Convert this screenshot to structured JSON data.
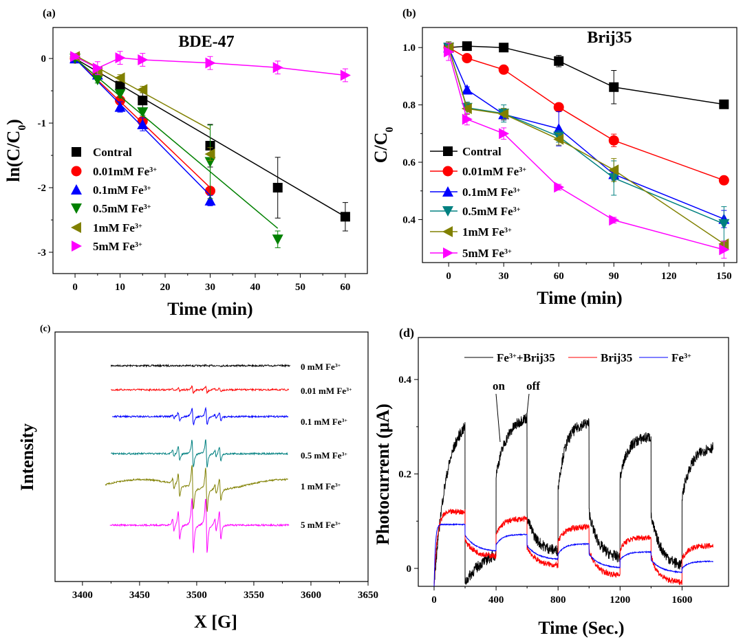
{
  "chart_data": [
    {
      "panel": "(a)",
      "type": "scatter",
      "title": "BDE-47",
      "xlabel": "Time (min)",
      "ylabel": {
        "text": "ln(C/C",
        "sub": "0",
        "tail": ")"
      },
      "xlim": [
        -4.9,
        64.9
      ],
      "ylim": [
        -3.33,
        0.48
      ],
      "xticks": [
        0,
        10,
        20,
        30,
        40,
        50,
        60
      ],
      "yticks": [
        0,
        -1,
        -2,
        -3
      ],
      "legend_position": "bottom-left",
      "series": [
        {
          "name": {
            "text": "Contral",
            "sup": ""
          },
          "color": "#000000",
          "marker": "square",
          "x": [
            0,
            10,
            15,
            30,
            45,
            60
          ],
          "y": [
            0,
            -0.42,
            -0.65,
            -1.35,
            -2.0,
            -2.45
          ],
          "err": [
            0.05,
            0.1,
            0.12,
            0.33,
            0.47,
            0.22
          ],
          "fit": [
            [
              0,
              0
            ],
            [
              60,
              -2.45
            ]
          ]
        },
        {
          "name": {
            "text": "0.01mM Fe",
            "sup": "3+"
          },
          "color": "#ff0000",
          "marker": "circle",
          "x": [
            0,
            5,
            10,
            15,
            30
          ],
          "y": [
            0,
            -0.25,
            -0.65,
            -0.97,
            -2.05
          ],
          "err": [
            0.03,
            0.06,
            0.05,
            0.05,
            0.05
          ],
          "fit": [
            [
              0,
              0
            ],
            [
              30,
              -2.0
            ]
          ]
        },
        {
          "name": {
            "text": "0.1mM Fe",
            "sup": "3+"
          },
          "color": "#0000ff",
          "marker": "triangle-up",
          "x": [
            0,
            5,
            10,
            15,
            30
          ],
          "y": [
            0,
            -0.25,
            -0.75,
            -1.02,
            -2.2
          ],
          "err": [
            0.03,
            0.05,
            0.08,
            0.1,
            0.08
          ],
          "fit": [
            [
              0,
              0
            ],
            [
              30,
              -2.12
            ]
          ]
        },
        {
          "name": {
            "text": "0.5mM Fe",
            "sup": "3+"
          },
          "color": "#008000",
          "marker": "triangle-down",
          "x": [
            0,
            5,
            10,
            15,
            30,
            45
          ],
          "y": [
            0,
            -0.33,
            -0.55,
            -0.83,
            -1.6,
            -2.8
          ],
          "err": [
            0.03,
            0.05,
            0.05,
            0.05,
            0.57,
            0.13
          ],
          "fit": [
            [
              0,
              0
            ],
            [
              45,
              -2.63
            ]
          ]
        },
        {
          "name": {
            "text": "1mM Fe",
            "sup": "3+"
          },
          "color": "#808000",
          "marker": "triangle-left",
          "x": [
            0,
            5,
            10,
            15,
            30
          ],
          "y": [
            0.03,
            -0.2,
            -0.3,
            -0.48,
            -1.48
          ],
          "err": [
            0.04,
            0.05,
            0.05,
            0.05,
            0.1
          ],
          "fit": [
            [
              0,
              0.05
            ],
            [
              30,
              -1.1
            ]
          ]
        },
        {
          "name": {
            "text": "5mM Fe",
            "sup": "3+"
          },
          "color": "#ff00ff",
          "marker": "triangle-right",
          "x": [
            0,
            5,
            10,
            15,
            30,
            45,
            60
          ],
          "y": [
            0.03,
            -0.15,
            0.01,
            -0.02,
            -0.07,
            -0.14,
            -0.26
          ],
          "err": [
            0.04,
            0.1,
            0.1,
            0.1,
            0.1,
            0.1,
            0.1
          ],
          "fit": null
        }
      ]
    },
    {
      "panel": "(b)",
      "type": "line",
      "title": "Brij35",
      "xlabel": "Time (min)",
      "ylabel": {
        "text": "C/C",
        "sub": "0",
        "tail": ""
      },
      "xlim": [
        -14.3,
        157
      ],
      "ylim": [
        0.25,
        1.07
      ],
      "xticks": [
        0,
        30,
        60,
        90,
        120,
        150
      ],
      "yticks": [
        0.4,
        0.6,
        0.8,
        1.0
      ],
      "yticklabels": [
        "0.4",
        "0.6",
        "0.8",
        "1.0"
      ],
      "legend_position": "bottom-left",
      "series": [
        {
          "name": {
            "text": "Contral",
            "sup": ""
          },
          "color": "#000000",
          "marker": "square",
          "x": [
            0,
            10,
            30,
            60,
            90,
            150
          ],
          "y": [
            1.0,
            1.005,
            1.0,
            0.953,
            0.862,
            0.802
          ],
          "err": [
            0.01,
            0.005,
            0.005,
            0.02,
            0.058,
            0.01
          ]
        },
        {
          "name": {
            "text": "0.01mM Fe",
            "sup": "3+"
          },
          "color": "#ff0000",
          "marker": "circle",
          "x": [
            0,
            10,
            30,
            60,
            90,
            150
          ],
          "y": [
            1.0,
            0.963,
            0.923,
            0.792,
            0.676,
            0.537
          ],
          "err": [
            0.01,
            0.005,
            0.005,
            0.01,
            0.022,
            0.01
          ]
        },
        {
          "name": {
            "text": "0.1mM Fe",
            "sup": "3+"
          },
          "color": "#0000ff",
          "marker": "triangle-up",
          "x": [
            0,
            10,
            30,
            60,
            90,
            150
          ],
          "y": [
            1.0,
            0.853,
            0.767,
            0.717,
            0.558,
            0.402
          ],
          "err": [
            0.02,
            0.01,
            0.02,
            0.06,
            0.02,
            0.03
          ]
        },
        {
          "name": {
            "text": "0.5mM Fe",
            "sup": "3+"
          },
          "color": "#008080",
          "marker": "triangle-down",
          "x": [
            0,
            10,
            30,
            60,
            90,
            150
          ],
          "y": [
            1.0,
            0.79,
            0.77,
            0.69,
            0.545,
            0.385
          ],
          "err": [
            0.02,
            0.02,
            0.03,
            0.02,
            0.06,
            0.06
          ]
        },
        {
          "name": {
            "text": "1mM Fe",
            "sup": "3+"
          },
          "color": "#808000",
          "marker": "triangle-left",
          "x": [
            0,
            10,
            30,
            60,
            90,
            150
          ],
          "y": [
            1.0,
            0.787,
            0.768,
            0.68,
            0.573,
            0.315
          ],
          "err": [
            0.02,
            0.02,
            0.02,
            0.02,
            0.04,
            0.01
          ]
        },
        {
          "name": {
            "text": "5mM Fe",
            "sup": "3+"
          },
          "color": "#ff00ff",
          "marker": "triangle-right",
          "x": [
            0,
            10,
            30,
            60,
            90,
            150
          ],
          "y": [
            0.985,
            0.75,
            0.7,
            0.513,
            0.398,
            0.295
          ],
          "err": [
            0.03,
            0.02,
            0.02,
            0.01,
            0.01,
            0.03
          ]
        }
      ]
    },
    {
      "panel": "(c)",
      "type": "line",
      "title": "",
      "xlabel": "X [G]",
      "ylabel": "Intensity",
      "xlim": [
        3376,
        3650
      ],
      "xticks": [
        3400,
        3450,
        3500,
        3550,
        3600,
        3650
      ],
      "line_centers": [
        3484.5,
        3496.5,
        3508.5,
        3520.5
      ],
      "line_ratio": [
        1,
        2,
        2,
        1
      ],
      "series": [
        {
          "name": {
            "text": "0 mM Fe",
            "sup": "3+"
          },
          "color": "#000000",
          "relative_amplitude": 0.02,
          "x_range": [
            3425,
            3582
          ]
        },
        {
          "name": {
            "text": "0.01 mM Fe",
            "sup": "3+"
          },
          "color": "#ff0000",
          "relative_amplitude": 0.12,
          "x_range": [
            3425,
            3581
          ]
        },
        {
          "name": {
            "text": "0.1 mM Fe",
            "sup": "3+"
          },
          "color": "#0000ff",
          "relative_amplitude": 0.3,
          "x_range": [
            3426,
            3580
          ]
        },
        {
          "name": {
            "text": "0.5 mM Fe",
            "sup": "3+"
          },
          "color": "#008080",
          "relative_amplitude": 0.5,
          "x_range": [
            3425,
            3580
          ]
        },
        {
          "name": {
            "text": "1 mM Fe",
            "sup": "3+"
          },
          "color": "#808000",
          "relative_amplitude": 0.8,
          "x_range": [
            3420,
            3580
          ]
        },
        {
          "name": {
            "text": "5 mM Fe",
            "sup": "3+"
          },
          "color": "#ff00ff",
          "relative_amplitude": 1.0,
          "x_range": [
            3424,
            3581
          ]
        }
      ]
    },
    {
      "panel": "(d)",
      "type": "line",
      "title": "",
      "xlabel": "Time (Sec.)",
      "ylabel": "Photocurrent (μA)",
      "xlim": [
        -102,
        1900
      ],
      "ylim": [
        -0.038,
        0.489
      ],
      "xticks": [
        0,
        400,
        800,
        1200,
        1600
      ],
      "yticks": [
        0,
        0.2,
        0.4
      ],
      "yticklabels": [
        "0",
        "0.2",
        "0.4"
      ],
      "annotations": [
        "on",
        "off"
      ],
      "legend_position": "top",
      "series": [
        {
          "name": {
            "text": "Fe",
            "sup": "3+",
            "tail": "+Brij35"
          },
          "color": "#000000",
          "noise": 0.012,
          "segments": [
            [
              0,
              200,
              -0.04,
              0.33,
              80
            ],
            [
              200,
              400,
              -0.03,
              0.05,
              150
            ],
            [
              400,
              600,
              0.2,
              0.33,
              80
            ],
            [
              600,
              800,
              0.11,
              0.035,
              60
            ],
            [
              800,
              1000,
              0.17,
              0.31,
              50
            ],
            [
              1000,
              1200,
              0.12,
              0.02,
              60
            ],
            [
              1200,
              1400,
              0.19,
              0.28,
              50
            ],
            [
              1400,
              1600,
              0.11,
              0.0,
              70
            ],
            [
              1600,
              1800,
              0.15,
              0.26,
              60
            ]
          ]
        },
        {
          "name": {
            "text": "Brij35",
            "sup": "",
            "tail": ""
          },
          "color": "#ff0000",
          "noise": 0.006,
          "segments": [
            [
              0,
              200,
              -0.04,
              0.12,
              20
            ],
            [
              200,
              400,
              0.06,
              0.025,
              60
            ],
            [
              400,
              600,
              0.07,
              0.105,
              40
            ],
            [
              600,
              800,
              0.045,
              0.005,
              60
            ],
            [
              800,
              1000,
              0.055,
              0.088,
              40
            ],
            [
              1000,
              1200,
              0.04,
              -0.015,
              50
            ],
            [
              1200,
              1400,
              0.04,
              0.066,
              40
            ],
            [
              1400,
              1600,
              0.025,
              -0.03,
              50
            ],
            [
              1600,
              1800,
              0.02,
              0.048,
              40
            ]
          ]
        },
        {
          "name": {
            "text": "Fe",
            "sup": "3+",
            "tail": ""
          },
          "color": "#0000ff",
          "noise": 0.001,
          "segments": [
            [
              0,
              200,
              -0.04,
              0.093,
              8
            ],
            [
              200,
              400,
              0.07,
              0.035,
              70
            ],
            [
              400,
              600,
              0.05,
              0.072,
              40
            ],
            [
              600,
              800,
              0.048,
              0.018,
              70
            ],
            [
              800,
              1000,
              0.03,
              0.052,
              40
            ],
            [
              1000,
              1200,
              0.03,
              0.0,
              70
            ],
            [
              1200,
              1400,
              0.018,
              0.035,
              40
            ],
            [
              1400,
              1600,
              0.018,
              -0.01,
              70
            ],
            [
              1600,
              1800,
              0.0,
              0.015,
              40
            ]
          ]
        }
      ]
    }
  ]
}
